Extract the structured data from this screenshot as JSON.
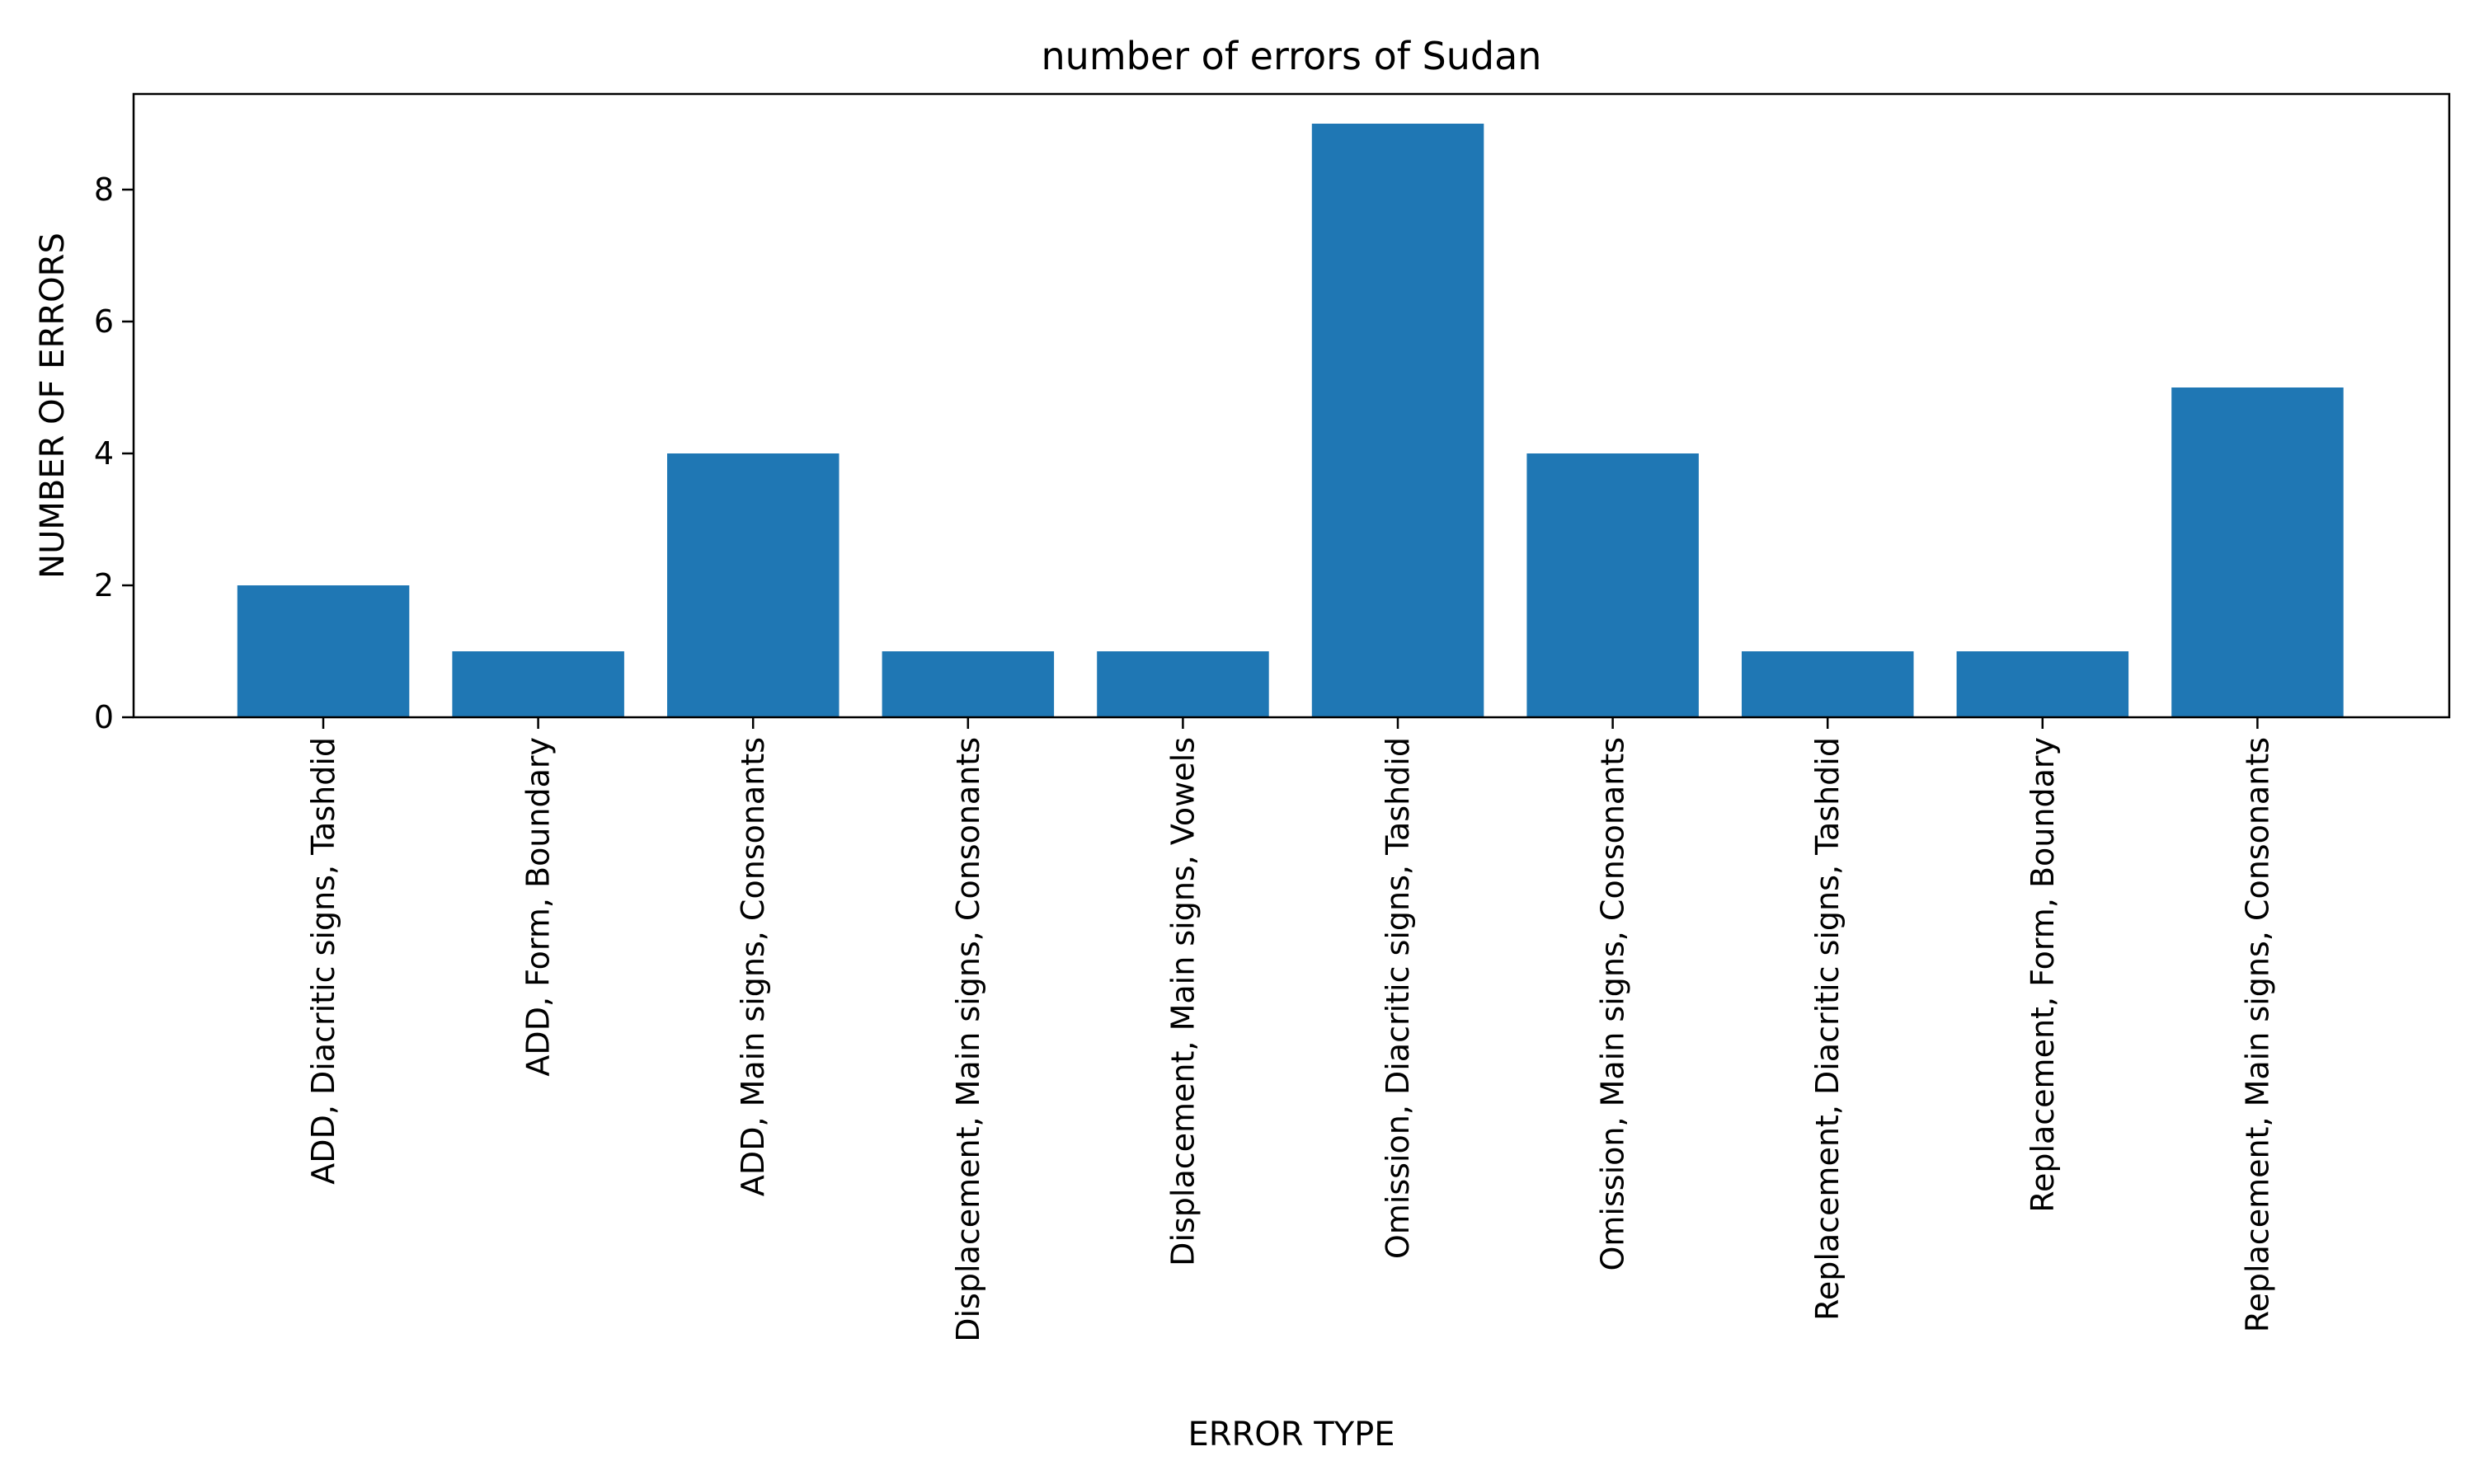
{
  "chart_data": {
    "type": "bar",
    "title": "number of errors of Sudan",
    "xlabel": "ERROR TYPE",
    "ylabel": "NUMBER OF ERRORS",
    "categories": [
      "ADD, Diacritic signs, Tashdid",
      "ADD, Form, Boundary",
      "ADD, Main signs, Consonants",
      "Displacement, Main signs, Consonants",
      "Displacement, Main signs, Vowels",
      "Omission, Diacritic signs, Tashdid",
      "Omission, Main signs, Consonants",
      "Replacement, Diacritic signs, Tashdid",
      "Replacement, Form, Boundary",
      "Replacement, Main signs, Consonants"
    ],
    "values": [
      2,
      1,
      4,
      1,
      1,
      9,
      4,
      1,
      1,
      5
    ],
    "ylim": [
      0,
      9.45
    ],
    "yticks": [
      0,
      2,
      4,
      6,
      8
    ],
    "grid": false,
    "bar_color": "#1f77b4"
  }
}
